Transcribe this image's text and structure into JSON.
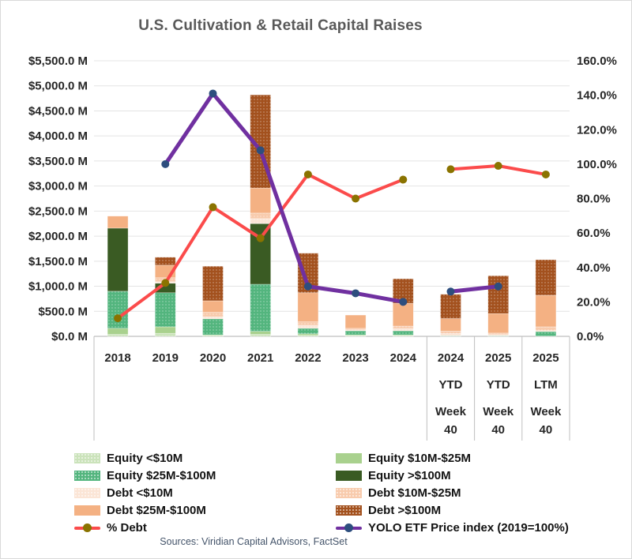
{
  "window": {
    "background": "#ffffff",
    "border_color": "#d9d9d9"
  },
  "title": {
    "text": "U.S. Cultivation & Retail Capital Raises",
    "color": "#595959"
  },
  "source_note": "Sources: Viridian Capital Advisors, FactSet",
  "chart_data": {
    "type": "bar",
    "subtype": "stacked-bar with dual-axis line overlay",
    "title": "U.S. Cultivation & Retail Capital Raises",
    "categories": [
      "2018",
      "2019",
      "2020",
      "2021",
      "2022",
      "2023",
      "2024",
      "2024 YTD Week 40",
      "2025 YTD Week 40",
      "2025 LTM Week 40"
    ],
    "category_label_lines": [
      [
        "2018"
      ],
      [
        "2019"
      ],
      [
        "2020"
      ],
      [
        "2021"
      ],
      [
        "2022"
      ],
      [
        "2023"
      ],
      [
        "2024"
      ],
      [
        "2024",
        "YTD",
        "Week",
        "40"
      ],
      [
        "2025",
        "YTD",
        "Week",
        "40"
      ],
      [
        "2025",
        "LTM",
        "Week",
        "40"
      ]
    ],
    "left_axis": {
      "unit": "$ millions",
      "min": 0,
      "max": 5500,
      "step": 500,
      "tick_labels": [
        "$0.0 M",
        "$500.0 M",
        "$1,000.0 M",
        "$1,500.0 M",
        "$2,000.0 M",
        "$2,500.0 M",
        "$3,000.0 M",
        "$3,500.0 M",
        "$4,000.0 M",
        "$4,500.0 M",
        "$5,000.0 M",
        "$5,500.0 M"
      ]
    },
    "right_axis": {
      "unit": "percent",
      "min": 0,
      "max": 160,
      "step": 20,
      "tick_labels": [
        "0.0%",
        "20.0%",
        "40.0%",
        "60.0%",
        "80.0%",
        "100.0%",
        "120.0%",
        "140.0%",
        "160.0%"
      ]
    },
    "grid": "horizontal gridlines on",
    "legend_position": "bottom, two columns",
    "bar_series": [
      {
        "name": "Equity <$10M",
        "color": "#CBE3BB",
        "dotted": true,
        "values": [
          40,
          60,
          30,
          40,
          20,
          15,
          15,
          5,
          5,
          5
        ]
      },
      {
        "name": "Equity $10M-$25M",
        "color": "#A9D18E",
        "dotted": false,
        "values": [
          120,
          130,
          0,
          60,
          30,
          15,
          15,
          0,
          0,
          0
        ]
      },
      {
        "name": "Equity $25M-$100M",
        "color": "#53B57E",
        "dotted": true,
        "values": [
          740,
          680,
          320,
          940,
          110,
          80,
          80,
          10,
          10,
          90
        ]
      },
      {
        "name": "Equity >$100M",
        "color": "#3A5B23",
        "dotted": false,
        "values": [
          1260,
          190,
          0,
          1210,
          0,
          0,
          0,
          0,
          0,
          0
        ]
      },
      {
        "name": "Debt <$10M",
        "color": "#FBE5D6",
        "dotted": true,
        "values": [
          0,
          30,
          40,
          100,
          60,
          20,
          45,
          40,
          20,
          20
        ]
      },
      {
        "name": "Debt $10M-$25M",
        "color": "#F8CBAD",
        "dotted": true,
        "values": [
          0,
          80,
          90,
          110,
          70,
          30,
          50,
          50,
          30,
          75
        ]
      },
      {
        "name": "Debt $25M-$100M",
        "color": "#F4B183",
        "dotted": false,
        "values": [
          240,
          250,
          230,
          500,
          580,
          265,
          455,
          250,
          390,
          630
        ]
      },
      {
        "name": "Debt >$100M",
        "color": "#A3511E",
        "dotted": true,
        "values": [
          0,
          160,
          690,
          1860,
          790,
          0,
          490,
          485,
          755,
          710
        ]
      }
    ],
    "bar_totals_estimated_$M": [
      2400,
      1580,
      1400,
      4820,
      1660,
      425,
      1150,
      840,
      1210,
      1530
    ],
    "line_series": [
      {
        "name": "% Debt",
        "axis": "right",
        "color": "#FB4B4B",
        "marker_color": "#8A7300",
        "line_width": 4,
        "breaks_after": [
          6
        ],
        "values": [
          10.5,
          31,
          75,
          57,
          94,
          80,
          91,
          97,
          99,
          94
        ]
      },
      {
        "name": "YOLO ETF Price index (2019=100%)",
        "axis": "right",
        "color": "#7030A0",
        "marker_color": "#2D4E7E",
        "line_width": 5,
        "breaks_after": [
          6
        ],
        "values": [
          null,
          100,
          141,
          108,
          29,
          25,
          20,
          26,
          29,
          null
        ]
      }
    ],
    "legend_columns": [
      [
        "Equity <$10M",
        "Equity $25M-$100M",
        "Debt <$10M",
        "Debt $25M-$100M",
        "% Debt"
      ],
      [
        "Equity $10M-$25M",
        "Equity >$100M",
        "Debt $10M-$25M",
        "Debt >$100M",
        "YOLO ETF Price index (2019=100%)"
      ]
    ]
  }
}
